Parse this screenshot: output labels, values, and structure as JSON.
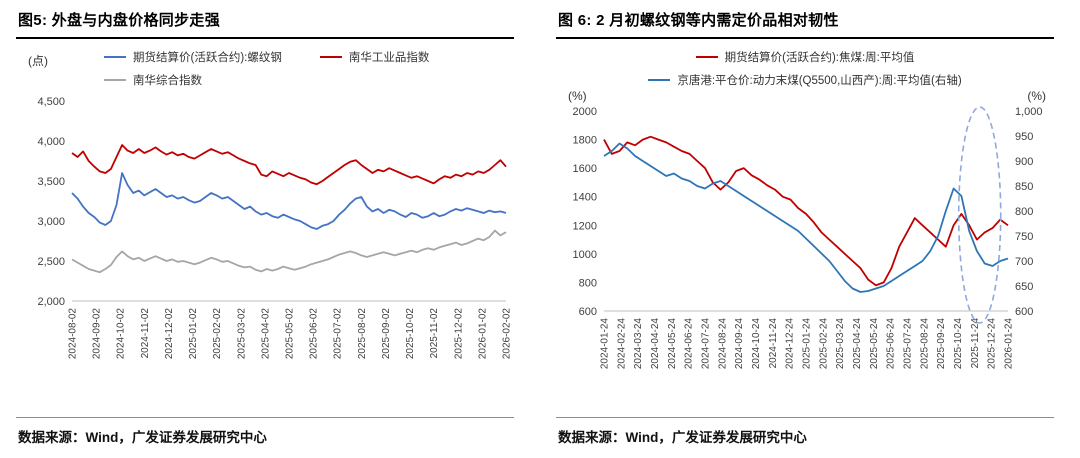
{
  "chart_data": [
    {
      "id": "fig5",
      "type": "line",
      "title": "图5: 外盘与内盘价格同步走强",
      "unit_left": "(点)",
      "source": "数据来源：Wind，广发证券发展研究中心",
      "x_labels": [
        "2024-08-02",
        "2024-09-02",
        "2024-10-02",
        "2024-11-02",
        "2024-12-02",
        "2025-01-02",
        "2025-02-02",
        "2025-03-02",
        "2025-04-02",
        "2025-05-02",
        "2025-06-02",
        "2025-07-02",
        "2025-08-02",
        "2025-09-02",
        "2025-10-02",
        "2025-11-02",
        "2025-12-02",
        "2026-01-02",
        "2026-02-02"
      ],
      "y_left": {
        "min": 2000,
        "max": 4500,
        "ticks": [
          "2,000",
          "2,500",
          "3,000",
          "3,500",
          "4,000",
          "4,500"
        ]
      },
      "grid": "off",
      "legend_position": "top",
      "series": [
        {
          "name": "期货结算价(活跃合约):螺纹钢",
          "color": "#4472C4",
          "axis": "left",
          "values": [
            3350,
            3280,
            3180,
            3100,
            3050,
            2980,
            2950,
            3000,
            3200,
            3600,
            3450,
            3350,
            3380,
            3320,
            3360,
            3400,
            3350,
            3300,
            3320,
            3280,
            3300,
            3260,
            3230,
            3250,
            3300,
            3350,
            3320,
            3280,
            3300,
            3250,
            3200,
            3150,
            3180,
            3120,
            3080,
            3100,
            3060,
            3040,
            3080,
            3050,
            3020,
            3000,
            2960,
            2920,
            2900,
            2940,
            2960,
            3000,
            3080,
            3140,
            3220,
            3280,
            3300,
            3180,
            3120,
            3150,
            3100,
            3140,
            3120,
            3080,
            3050,
            3100,
            3080,
            3040,
            3060,
            3100,
            3060,
            3080,
            3120,
            3150,
            3130,
            3160,
            3140,
            3120,
            3100,
            3130,
            3110,
            3120,
            3100
          ]
        },
        {
          "name": "南华工业品指数",
          "color": "#C00000",
          "axis": "left",
          "values": [
            3850,
            3800,
            3870,
            3750,
            3680,
            3620,
            3600,
            3650,
            3800,
            3950,
            3880,
            3850,
            3900,
            3850,
            3880,
            3920,
            3870,
            3830,
            3860,
            3820,
            3840,
            3800,
            3780,
            3820,
            3860,
            3900,
            3870,
            3840,
            3860,
            3820,
            3780,
            3750,
            3720,
            3700,
            3580,
            3560,
            3620,
            3590,
            3560,
            3600,
            3570,
            3540,
            3520,
            3480,
            3460,
            3500,
            3550,
            3600,
            3650,
            3700,
            3740,
            3760,
            3700,
            3650,
            3600,
            3640,
            3620,
            3660,
            3630,
            3600,
            3570,
            3540,
            3560,
            3530,
            3500,
            3470,
            3520,
            3560,
            3540,
            3580,
            3560,
            3600,
            3580,
            3620,
            3600,
            3640,
            3700,
            3760,
            3680
          ]
        },
        {
          "name": "南华综合指数",
          "color": "#A6A6A6",
          "axis": "left",
          "values": [
            2520,
            2480,
            2440,
            2400,
            2380,
            2360,
            2400,
            2450,
            2550,
            2620,
            2560,
            2520,
            2540,
            2500,
            2530,
            2560,
            2530,
            2500,
            2520,
            2490,
            2500,
            2480,
            2460,
            2480,
            2510,
            2540,
            2520,
            2490,
            2500,
            2470,
            2440,
            2420,
            2430,
            2390,
            2370,
            2400,
            2380,
            2400,
            2430,
            2410,
            2390,
            2410,
            2430,
            2460,
            2480,
            2500,
            2520,
            2550,
            2580,
            2600,
            2620,
            2600,
            2570,
            2550,
            2570,
            2590,
            2610,
            2590,
            2570,
            2590,
            2610,
            2630,
            2610,
            2640,
            2660,
            2640,
            2670,
            2690,
            2710,
            2730,
            2700,
            2720,
            2750,
            2780,
            2760,
            2800,
            2880,
            2820,
            2860
          ]
        }
      ]
    },
    {
      "id": "fig6",
      "type": "line",
      "title": "图 6:  2 月初螺纹钢等内需定价品相对韧性",
      "unit_left": "(%)",
      "unit_right": "(%)",
      "source": "数据来源：Wind，广发证券发展研究中心",
      "x_labels": [
        "2024-01-24",
        "2024-02-24",
        "2024-03-24",
        "2024-04-24",
        "2024-05-24",
        "2024-06-24",
        "2024-07-24",
        "2024-08-24",
        "2024-09-24",
        "2024-10-24",
        "2024-11-24",
        "2024-12-24",
        "2025-01-24",
        "2025-02-24",
        "2025-03-24",
        "2025-04-24",
        "2025-05-24",
        "2025-06-24",
        "2025-07-24",
        "2025-08-24",
        "2025-09-24",
        "2025-10-24",
        "2025-11-24",
        "2025-12-24",
        "2026-01-24"
      ],
      "y_left": {
        "min": 600,
        "max": 2000,
        "ticks": [
          "600",
          "800",
          "1000",
          "1200",
          "1400",
          "1600",
          "1800",
          "2000"
        ]
      },
      "y_right": {
        "min": 600,
        "max": 1000,
        "ticks": [
          "600",
          "650",
          "700",
          "750",
          "800",
          "850",
          "900",
          "950",
          "1,000"
        ]
      },
      "grid": "off",
      "legend_position": "top",
      "annotation_ellipse": {
        "x_frac": 0.93,
        "color": "#8EA9DB"
      },
      "series": [
        {
          "name": "期货结算价(活跃合约):焦煤:周:平均值",
          "color": "#C00000",
          "axis": "left",
          "values": [
            1800,
            1700,
            1720,
            1780,
            1760,
            1800,
            1820,
            1800,
            1780,
            1750,
            1720,
            1700,
            1650,
            1600,
            1500,
            1450,
            1500,
            1580,
            1600,
            1550,
            1520,
            1480,
            1450,
            1400,
            1380,
            1320,
            1280,
            1220,
            1150,
            1100,
            1050,
            1000,
            950,
            900,
            820,
            780,
            800,
            900,
            1050,
            1150,
            1250,
            1200,
            1150,
            1100,
            1050,
            1200,
            1280,
            1200,
            1100,
            1150,
            1180,
            1240,
            1200
          ]
        },
        {
          "name": "京唐港:平仓价:动力末煤(Q5500,山西产):周:平均值(右轴)",
          "color": "#2E75B6",
          "axis": "right",
          "values": [
            910,
            920,
            935,
            925,
            910,
            900,
            890,
            880,
            870,
            875,
            865,
            860,
            850,
            845,
            855,
            860,
            850,
            840,
            830,
            820,
            810,
            800,
            790,
            780,
            770,
            760,
            745,
            730,
            715,
            700,
            680,
            660,
            645,
            638,
            640,
            645,
            650,
            660,
            670,
            680,
            690,
            700,
            720,
            750,
            800,
            845,
            830,
            760,
            720,
            695,
            690,
            700,
            705
          ]
        }
      ]
    }
  ]
}
